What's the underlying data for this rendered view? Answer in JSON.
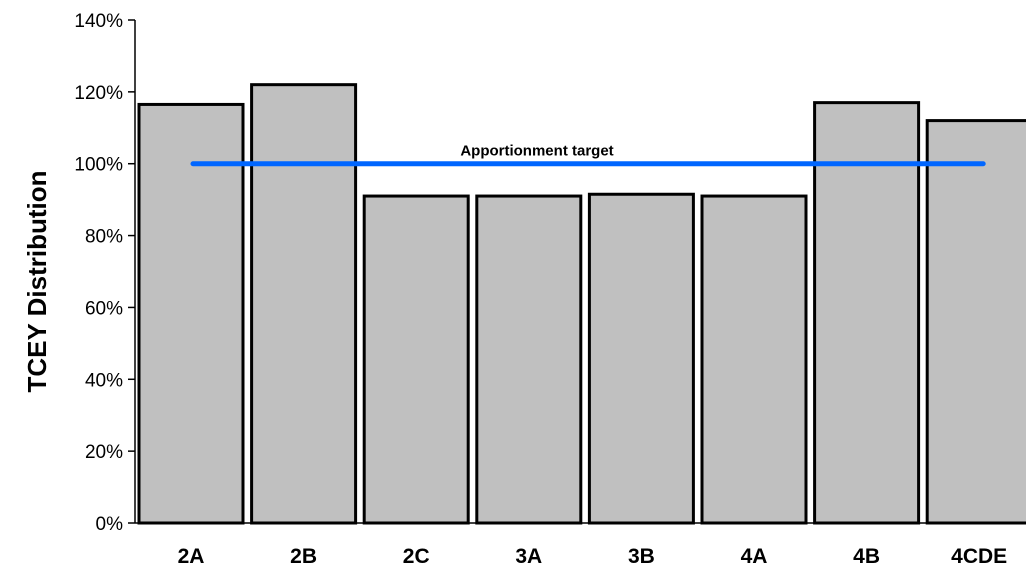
{
  "chart_data": {
    "type": "bar",
    "title": "",
    "xlabel": "",
    "ylabel": "TCEY Distribution",
    "categories": [
      "2A",
      "2B",
      "2C",
      "3A",
      "3B",
      "4A",
      "4B",
      "4CDE"
    ],
    "values": [
      116.5,
      122,
      91,
      91,
      91.5,
      91,
      117,
      112
    ],
    "ylim": [
      0,
      140
    ],
    "y_tick_values": [
      0,
      20,
      40,
      60,
      80,
      100,
      120,
      140
    ],
    "y_tick_labels": [
      "0%",
      "20%",
      "40%",
      "60%",
      "80%",
      "100%",
      "120%",
      "140%"
    ],
    "grid": false,
    "legend": "none",
    "bar_color": "#c0c0c0",
    "bar_edge_color": "#000000",
    "reference_line": {
      "label": "Apportionment target",
      "value": 100,
      "from_category": "2A",
      "to_category": "4CDE",
      "color": "#0066ff"
    }
  }
}
